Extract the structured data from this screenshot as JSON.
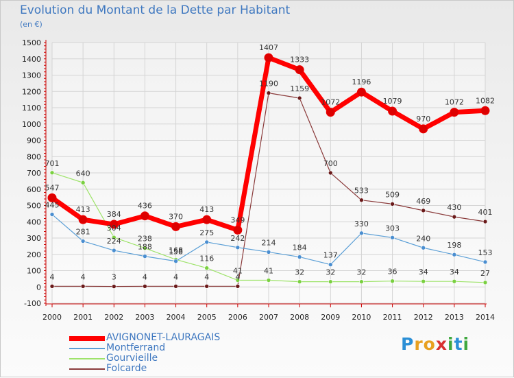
{
  "header": {
    "title": "Evolution du Montant de la Dette par Habitant",
    "subtitle": "(en €)"
  },
  "logo": {
    "letters": [
      "P",
      "r",
      "o",
      "x",
      "i",
      "t",
      "i"
    ],
    "colors": [
      "#2b8fd6",
      "#e8a020",
      "#e8a020",
      "#d93030",
      "#3fa83f",
      "#2b8fd6",
      "#3fa83f"
    ]
  },
  "chart_data": {
    "type": "line",
    "x": [
      "2000",
      "2001",
      "2002",
      "2003",
      "2004",
      "2005",
      "2006",
      "2007",
      "2008",
      "2009",
      "2010",
      "2011",
      "2012",
      "2013",
      "2014"
    ],
    "ylim": [
      -100,
      1500
    ],
    "yticks": [
      -100,
      0,
      100,
      200,
      300,
      400,
      500,
      600,
      700,
      800,
      900,
      1000,
      1100,
      1200,
      1300,
      1400,
      1500
    ],
    "grid": true,
    "legend_position": "bottom-left",
    "series": [
      {
        "name": "AVIGNONET-LAURAGAIS",
        "color": "#ff0000",
        "marker": "#dd0000",
        "width": 7,
        "values": [
          547,
          413,
          384,
          436,
          370,
          413,
          349,
          1407,
          1333,
          1072,
          1196,
          1079,
          970,
          1072,
          1082
        ]
      },
      {
        "name": "Montferrand",
        "color": "#5b9fd6",
        "marker": "#4a8ed0",
        "width": 1.2,
        "values": [
          445,
          281,
          224,
          188,
          158,
          275,
          242,
          214,
          184,
          137,
          330,
          303,
          240,
          198,
          153
        ]
      },
      {
        "name": "Gourvieille",
        "color": "#9ee36a",
        "marker": "#7ad040",
        "width": 1.2,
        "values": [
          701,
          640,
          304,
          238,
          168,
          116,
          41,
          41,
          32,
          32,
          32,
          36,
          34,
          34,
          27
        ]
      },
      {
        "name": "Folcarde",
        "color": "#8a3a3a",
        "marker": "#6a1a1a",
        "width": 1.2,
        "values": [
          4,
          4,
          3,
          4,
          4,
          4,
          4,
          1190,
          1159,
          700,
          533,
          509,
          469,
          430,
          401
        ]
      }
    ]
  }
}
